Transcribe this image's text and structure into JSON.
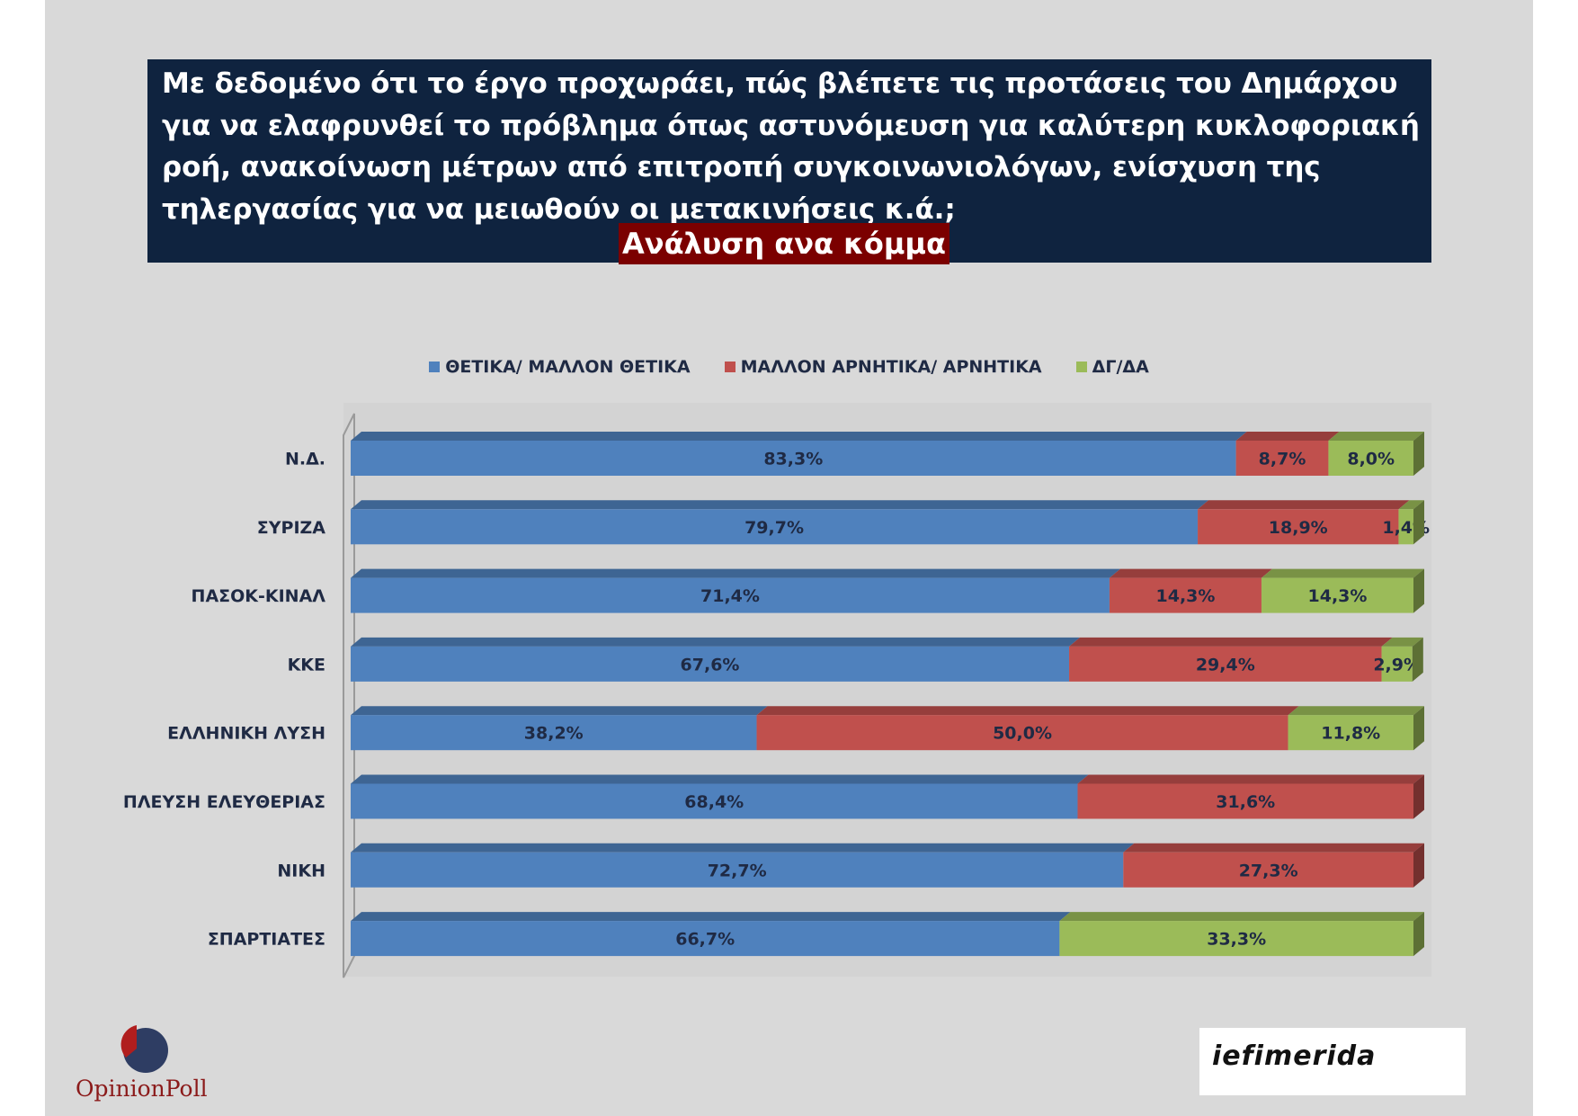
{
  "question": "Με δεδομένο ότι το έργο προχωράει, πώς βλέπετε τις προτάσεις του Δημάρχου για να ελαφρυνθεί το πρόβλημα όπως αστυνόμευση για καλύτερη κυκλοφοριακή ροή, ανακοίνωση μέτρων από επιτροπή συγκοινωνιολόγων, ενίσχυση της τηλεργασίας για να μειωθούν οι μετακινήσεις κ.ά.;",
  "subtitle": "Ανάλυση ανα κόμμα",
  "colors": {
    "positive": "#4f81bd",
    "negative": "#c0504d",
    "dk": "#9bbb59",
    "title_bg": "#0f233f",
    "subtitle_bg": "#7b0000"
  },
  "chart_data": {
    "type": "bar",
    "orientation": "horizontal",
    "stacked": true,
    "categories": [
      "Ν.Δ.",
      "ΣΥΡΙΖΑ",
      "ΠΑΣΟΚ-ΚΙΝΑΛ",
      "ΚΚΕ",
      "ΕΛΛΗΝΙΚΗ ΛΥΣΗ",
      "ΠΛΕΥΣΗ ΕΛΕΥΘΕΡΙΑΣ",
      "ΝΙΚΗ",
      "ΣΠΑΡΤΙΑΤΕΣ"
    ],
    "series": [
      {
        "name": "ΘΕΤΙΚΑ/ ΜΑΛΛΟΝ ΘΕΤΙΚΑ",
        "color": "#4f81bd",
        "values": [
          83.3,
          79.7,
          71.4,
          67.6,
          38.2,
          68.4,
          72.7,
          66.7
        ],
        "labels": [
          "83,3%",
          "79,7%",
          "71,4%",
          "67,6%",
          "38,2%",
          "68,4%",
          "72,7%",
          "66,7%"
        ]
      },
      {
        "name": "ΜΑΛΛΟΝ ΑΡΝΗΤΙΚΑ/ ΑΡΝΗΤΙΚΑ",
        "color": "#c0504d",
        "values": [
          8.7,
          18.9,
          14.3,
          29.4,
          50.0,
          31.6,
          27.3,
          0
        ],
        "labels": [
          "8,7%",
          "18,9%",
          "14,3%",
          "29,4%",
          "50,0%",
          "31,6%",
          "27,3%",
          ""
        ]
      },
      {
        "name": "ΔΓ/ΔΑ",
        "color": "#9bbb59",
        "values": [
          8.0,
          1.4,
          14.3,
          2.9,
          11.8,
          0,
          0,
          33.3
        ],
        "labels": [
          "8,0%",
          "1,4%",
          "14,3%",
          "2,9%",
          "11,8%",
          "",
          "",
          "33,3%"
        ]
      }
    ],
    "xlim": [
      0,
      100
    ],
    "legend_position": "top-center",
    "grid": false
  },
  "logos": {
    "left": "OpinionPoll",
    "right": "iefimerida"
  }
}
